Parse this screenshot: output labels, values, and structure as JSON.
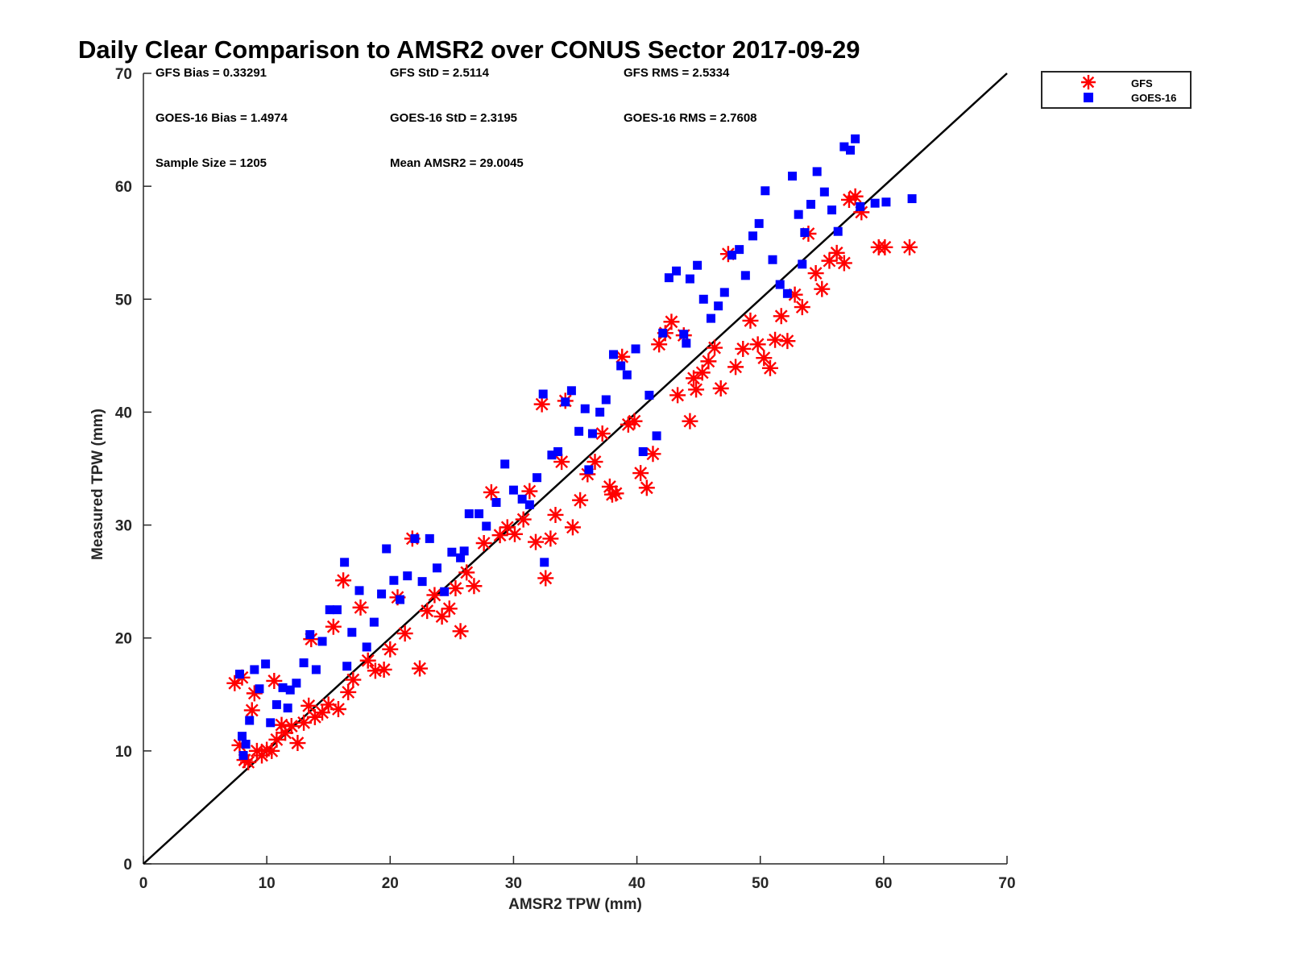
{
  "chart_data": {
    "type": "scatter",
    "title": "Daily Clear Comparison to AMSR2 over CONUS Sector 2017-09-29",
    "xlabel": "AMSR2 TPW (mm)",
    "ylabel": "Measured TPW (mm)",
    "xlim": [
      0,
      70
    ],
    "ylim": [
      0,
      70
    ],
    "xticks": [
      0,
      10,
      20,
      30,
      40,
      50,
      60,
      70
    ],
    "yticks": [
      0,
      10,
      20,
      30,
      40,
      50,
      60,
      70
    ],
    "grid": false,
    "legend_position": "outside-top-right",
    "reference_line": {
      "x": [
        0,
        70
      ],
      "y": [
        0,
        70
      ]
    },
    "annotations": [
      "GFS Bias = 0.33291",
      "GFS StD = 2.5114",
      "GFS RMS = 2.5334",
      "GOES-16 Bias = 1.4974",
      "GOES-16 StD = 2.3195",
      "GOES-16 RMS = 2.7608",
      "Sample Size = 1205",
      "Mean AMSR2 = 29.0045"
    ],
    "series": [
      {
        "name": "GFS",
        "marker": "asterisk",
        "color": "#ff0000",
        "points": [
          [
            7.4,
            16.0
          ],
          [
            7.8,
            10.5
          ],
          [
            8.2,
            9.2
          ],
          [
            8.5,
            9.0
          ],
          [
            8.8,
            13.6
          ],
          [
            9.0,
            15.1
          ],
          [
            9.2,
            10.0
          ],
          [
            9.6,
            9.6
          ],
          [
            10.0,
            10.1
          ],
          [
            10.4,
            10.0
          ],
          [
            10.8,
            11.0
          ],
          [
            11.2,
            12.3
          ],
          [
            11.5,
            11.6
          ],
          [
            12.0,
            12.2
          ],
          [
            12.5,
            10.7
          ],
          [
            13.0,
            12.5
          ],
          [
            13.4,
            14.0
          ],
          [
            13.9,
            13.0
          ],
          [
            14.5,
            13.4
          ],
          [
            15.0,
            14.1
          ],
          [
            15.4,
            21.0
          ],
          [
            15.8,
            13.7
          ],
          [
            16.2,
            25.1
          ],
          [
            16.6,
            15.2
          ],
          [
            17.0,
            16.3
          ],
          [
            17.6,
            22.7
          ],
          [
            18.2,
            18.0
          ],
          [
            18.8,
            17.1
          ],
          [
            19.5,
            17.2
          ],
          [
            20.0,
            19.0
          ],
          [
            20.6,
            23.6
          ],
          [
            21.2,
            20.4
          ],
          [
            21.8,
            28.8
          ],
          [
            22.4,
            17.3
          ],
          [
            23.0,
            22.4
          ],
          [
            23.6,
            23.8
          ],
          [
            24.2,
            21.9
          ],
          [
            24.8,
            22.6
          ],
          [
            25.3,
            24.4
          ],
          [
            26.2,
            25.8
          ],
          [
            26.8,
            24.6
          ],
          [
            27.6,
            28.4
          ],
          [
            28.2,
            32.9
          ],
          [
            28.9,
            29.1
          ],
          [
            29.5,
            29.8
          ],
          [
            30.1,
            29.2
          ],
          [
            30.8,
            30.5
          ],
          [
            31.3,
            33.0
          ],
          [
            31.8,
            28.5
          ],
          [
            32.3,
            40.7
          ],
          [
            32.6,
            25.3
          ],
          [
            33.0,
            28.8
          ],
          [
            33.4,
            30.9
          ],
          [
            33.9,
            35.6
          ],
          [
            34.2,
            41.0
          ],
          [
            34.8,
            29.8
          ],
          [
            35.4,
            32.2
          ],
          [
            36.0,
            34.5
          ],
          [
            36.6,
            35.6
          ],
          [
            37.2,
            38.1
          ],
          [
            37.8,
            33.4
          ],
          [
            38.3,
            32.8
          ],
          [
            38.8,
            44.9
          ],
          [
            39.3,
            38.9
          ],
          [
            39.8,
            39.2
          ],
          [
            40.3,
            34.6
          ],
          [
            40.8,
            33.3
          ],
          [
            41.3,
            36.3
          ],
          [
            41.8,
            46.0
          ],
          [
            42.3,
            47.0
          ],
          [
            42.8,
            48.0
          ],
          [
            43.3,
            41.5
          ],
          [
            43.8,
            46.8
          ],
          [
            44.3,
            39.2
          ],
          [
            44.8,
            42.0
          ],
          [
            45.3,
            43.5
          ],
          [
            45.8,
            44.5
          ],
          [
            46.3,
            45.7
          ],
          [
            46.8,
            42.1
          ],
          [
            47.4,
            54.0
          ],
          [
            48.0,
            44.0
          ],
          [
            48.6,
            45.6
          ],
          [
            49.2,
            48.1
          ],
          [
            49.8,
            46.0
          ],
          [
            50.3,
            44.8
          ],
          [
            50.8,
            43.9
          ],
          [
            51.2,
            46.4
          ],
          [
            51.7,
            48.5
          ],
          [
            52.2,
            46.3
          ],
          [
            52.8,
            50.4
          ],
          [
            53.4,
            49.3
          ],
          [
            53.9,
            55.8
          ],
          [
            54.5,
            52.3
          ],
          [
            55.0,
            50.9
          ],
          [
            55.6,
            53.4
          ],
          [
            56.2,
            54.1
          ],
          [
            56.8,
            53.2
          ],
          [
            57.2,
            58.8
          ],
          [
            57.7,
            59.1
          ],
          [
            58.2,
            57.7
          ],
          [
            59.6,
            54.6
          ],
          [
            60.1,
            54.6
          ],
          [
            62.1,
            54.6
          ],
          [
            38.0,
            32.7
          ],
          [
            25.7,
            20.6
          ],
          [
            44.6,
            43.0
          ],
          [
            8.0,
            16.5
          ],
          [
            10.6,
            16.2
          ],
          [
            13.6,
            19.9
          ]
        ]
      },
      {
        "name": "GOES-16",
        "marker": "square",
        "color": "#0000ff",
        "points": [
          [
            7.8,
            16.8
          ],
          [
            8.0,
            11.3
          ],
          [
            8.3,
            10.6
          ],
          [
            8.6,
            12.7
          ],
          [
            9.0,
            17.2
          ],
          [
            9.4,
            15.5
          ],
          [
            9.9,
            17.7
          ],
          [
            10.3,
            12.5
          ],
          [
            10.8,
            14.1
          ],
          [
            11.3,
            15.6
          ],
          [
            11.9,
            15.4
          ],
          [
            12.4,
            16.0
          ],
          [
            13.0,
            17.8
          ],
          [
            13.5,
            20.3
          ],
          [
            14.0,
            17.2
          ],
          [
            14.5,
            19.7
          ],
          [
            15.1,
            22.5
          ],
          [
            15.7,
            22.5
          ],
          [
            16.3,
            26.7
          ],
          [
            16.9,
            20.5
          ],
          [
            17.5,
            24.2
          ],
          [
            18.1,
            19.2
          ],
          [
            18.7,
            21.4
          ],
          [
            19.3,
            23.9
          ],
          [
            19.7,
            27.9
          ],
          [
            20.3,
            25.1
          ],
          [
            20.8,
            23.4
          ],
          [
            21.4,
            25.5
          ],
          [
            22.0,
            28.8
          ],
          [
            22.6,
            25.0
          ],
          [
            23.2,
            28.8
          ],
          [
            23.8,
            26.2
          ],
          [
            24.4,
            24.1
          ],
          [
            25.0,
            27.6
          ],
          [
            25.7,
            27.1
          ],
          [
            26.4,
            31.0
          ],
          [
            27.2,
            31.0
          ],
          [
            27.8,
            29.9
          ],
          [
            28.6,
            32.0
          ],
          [
            29.3,
            35.4
          ],
          [
            30.0,
            33.1
          ],
          [
            30.7,
            32.3
          ],
          [
            31.3,
            31.8
          ],
          [
            31.9,
            34.2
          ],
          [
            32.4,
            41.6
          ],
          [
            32.5,
            26.7
          ],
          [
            33.1,
            36.2
          ],
          [
            33.6,
            36.5
          ],
          [
            34.2,
            40.9
          ],
          [
            34.7,
            41.9
          ],
          [
            35.3,
            38.3
          ],
          [
            35.8,
            40.3
          ],
          [
            36.4,
            38.1
          ],
          [
            37.0,
            40.0
          ],
          [
            37.5,
            41.1
          ],
          [
            38.1,
            45.1
          ],
          [
            38.7,
            44.1
          ],
          [
            39.2,
            43.3
          ],
          [
            39.9,
            45.6
          ],
          [
            40.5,
            36.5
          ],
          [
            41.0,
            41.5
          ],
          [
            41.6,
            37.9
          ],
          [
            42.1,
            47.0
          ],
          [
            42.6,
            51.9
          ],
          [
            43.2,
            52.5
          ],
          [
            43.8,
            46.9
          ],
          [
            44.3,
            51.8
          ],
          [
            44.9,
            53.0
          ],
          [
            45.4,
            50.0
          ],
          [
            46.0,
            48.3
          ],
          [
            46.6,
            49.4
          ],
          [
            47.1,
            50.6
          ],
          [
            47.7,
            53.9
          ],
          [
            48.3,
            54.4
          ],
          [
            48.8,
            52.1
          ],
          [
            49.4,
            55.6
          ],
          [
            49.9,
            56.7
          ],
          [
            50.4,
            59.6
          ],
          [
            51.0,
            53.5
          ],
          [
            51.6,
            51.3
          ],
          [
            52.2,
            50.5
          ],
          [
            52.6,
            60.9
          ],
          [
            53.1,
            57.5
          ],
          [
            53.6,
            55.9
          ],
          [
            54.1,
            58.4
          ],
          [
            54.6,
            61.3
          ],
          [
            55.2,
            59.5
          ],
          [
            55.8,
            57.9
          ],
          [
            56.3,
            56.0
          ],
          [
            56.8,
            63.5
          ],
          [
            57.3,
            63.2
          ],
          [
            57.7,
            64.2
          ],
          [
            58.1,
            58.2
          ],
          [
            59.3,
            58.5
          ],
          [
            60.2,
            58.6
          ],
          [
            62.3,
            58.9
          ],
          [
            8.1,
            9.6
          ],
          [
            11.7,
            13.8
          ],
          [
            16.5,
            17.5
          ],
          [
            26.0,
            27.7
          ],
          [
            36.1,
            34.9
          ],
          [
            44.0,
            46.1
          ],
          [
            53.4,
            53.1
          ]
        ]
      }
    ]
  }
}
